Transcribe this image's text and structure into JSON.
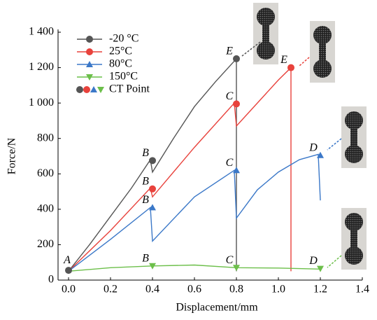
{
  "chart_data": {
    "type": "line",
    "x_label": "Displacement/mm",
    "y_label": "Force/N",
    "xlim": [
      -0.05,
      1.4
    ],
    "ylim": [
      0,
      1400
    ],
    "xticks": [
      {
        "value": 0,
        "label": "0.0"
      },
      0.2,
      0.4,
      0.6,
      0.8,
      {
        "value": 1,
        "label": "1.0"
      },
      1.2,
      1.4
    ],
    "yticks": [
      0,
      200,
      400,
      600,
      800,
      {
        "value": 1000,
        "label": "1 000"
      },
      {
        "value": 1200,
        "label": "1 200"
      },
      {
        "value": 1400,
        "label": "1 400"
      }
    ],
    "grid": false,
    "series": [
      {
        "name": "-20 °C",
        "color": "#555555",
        "marker": "circle",
        "x": [
          0,
          0.1,
          0.2,
          0.3,
          0.39,
          0.4,
          0.5,
          0.6,
          0.7,
          0.8,
          0.8
        ],
        "values": [
          50,
          200,
          360,
          520,
          680,
          610,
          800,
          980,
          1120,
          1250,
          50
        ],
        "points": {
          "x": [
            0.4,
            0.8
          ],
          "y": [
            675,
            1250
          ],
          "labels": [
            "B",
            "E"
          ]
        }
      },
      {
        "name": "25°C",
        "color": "#e8423c",
        "marker": "circle",
        "x": [
          0,
          0.2,
          0.39,
          0.4,
          0.6,
          0.79,
          0.8,
          0.9,
          1.0,
          1.06,
          1.06
        ],
        "values": [
          50,
          280,
          520,
          470,
          750,
          1000,
          870,
          1000,
          1130,
          1200,
          50
        ],
        "points": {
          "x": [
            0.4,
            0.8,
            1.06
          ],
          "y": [
            515,
            995,
            1200
          ],
          "labels": [
            "B",
            "C",
            "E"
          ]
        }
      },
      {
        "name": "80°C",
        "color": "#3b78c8",
        "marker": "triangle-up",
        "x": [
          0,
          0.2,
          0.39,
          0.4,
          0.6,
          0.79,
          0.8,
          0.9,
          1.0,
          1.1,
          1.19,
          1.2
        ],
        "values": [
          50,
          230,
          410,
          220,
          470,
          620,
          350,
          510,
          610,
          680,
          710,
          450
        ],
        "points": {
          "x": [
            0.4,
            0.8,
            1.2
          ],
          "y": [
            410,
            620,
            705
          ],
          "labels": [
            "B",
            "C",
            "D"
          ]
        }
      },
      {
        "name": "150°C",
        "color": "#6cbf4a",
        "marker": "triangle-down",
        "x": [
          0,
          0.2,
          0.4,
          0.6,
          0.8,
          1.0,
          1.2
        ],
        "values": [
          50,
          70,
          80,
          85,
          70,
          68,
          62
        ],
        "points": {
          "x": [
            0.4,
            0.8,
            1.2
          ],
          "y": [
            80,
            70,
            65
          ],
          "labels": [
            "B",
            "C",
            "D"
          ]
        }
      }
    ],
    "ct_legend": "CT Point",
    "annotations": [
      {
        "text": "A",
        "x": 0,
        "y": 55
      }
    ]
  }
}
